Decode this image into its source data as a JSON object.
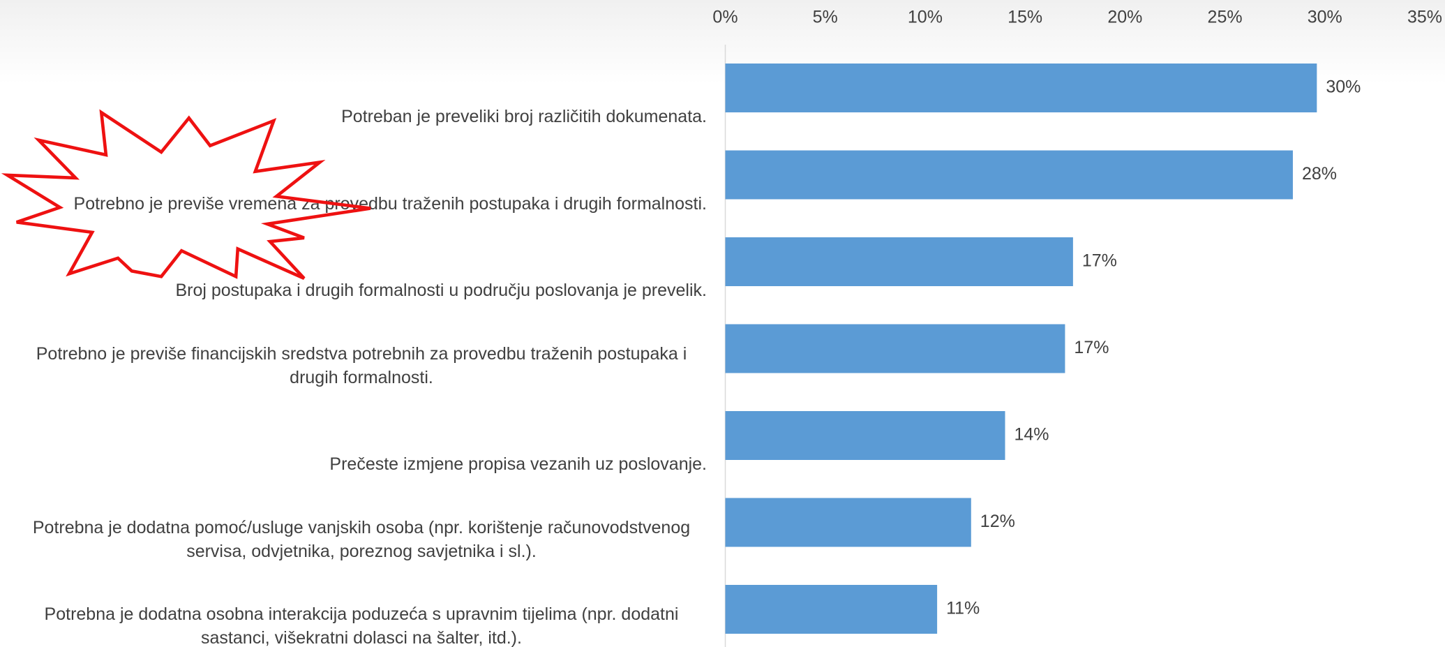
{
  "chart_data": {
    "type": "bar",
    "orientation": "horizontal",
    "categories": [
      "Potreban je preveliki broj različitih dokumenata.",
      "Potrebno je previše vremena za provedbu traženih postupaka i drugih formalnosti.",
      "Broj postupaka i drugih formalnosti u području poslovanja je prevelik.",
      "Potrebno je previše financijskih sredstva potrebnih za provedbu traženih postupaka i drugih formalnosti.",
      "Prečeste izmjene propisa vezanih uz poslovanje.",
      "Potrebna je dodatna pomoć/usluge vanjskih osoba (npr. korištenje računovodstvenog servisa, odvjetnika, poreznog savjetnika i sl.).",
      "Potrebna je dodatna osobna interakcija poduzeća s upravnim tijelima (npr. dodatni sastanci, višekratni dolasci na šalter, itd.)."
    ],
    "values": [
      29.6,
      28.4,
      17.4,
      17.0,
      14.0,
      12.3,
      10.6
    ],
    "value_labels": [
      "30%",
      "28%",
      "17%",
      "17%",
      "14%",
      "12%",
      "11%"
    ],
    "color": "#5b9bd5",
    "xlim": [
      0,
      35
    ],
    "xticks": [
      {
        "value": 0,
        "label": "0%"
      },
      {
        "value": 5,
        "label": "5%"
      },
      {
        "value": 10,
        "label": "10%"
      },
      {
        "value": 15,
        "label": "15%"
      },
      {
        "value": 20,
        "label": "20%"
      },
      {
        "value": 25,
        "label": "25%"
      },
      {
        "value": 30,
        "label": "30%"
      },
      {
        "value": 35,
        "label": "35%"
      }
    ]
  }
}
